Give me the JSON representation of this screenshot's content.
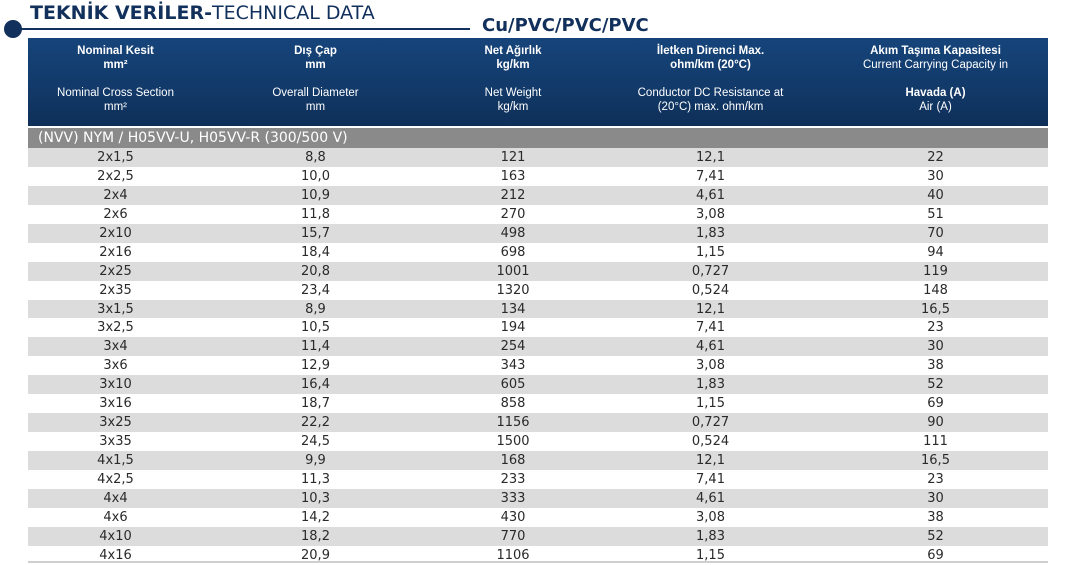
{
  "title": {
    "bold": "TEKNİK VERİLER-",
    "light": "TECHNICAL DATA"
  },
  "subtitle": "Cu/PVC/PVC/PVC",
  "header": {
    "columns": [
      {
        "tr": "Nominal Kesit",
        "tr_unit": "mm²",
        "en": "Nominal Cross Section",
        "en_unit": "mm²"
      },
      {
        "tr": "Dış Çap",
        "tr_unit": "mm",
        "en": "Overall Diameter",
        "en_unit": "mm"
      },
      {
        "tr": "Net Ağırlık",
        "tr_unit": "kg/km",
        "en": "Net Weight",
        "en_unit": "kg/km"
      },
      {
        "tr": "İletken Direnci Max.",
        "tr_unit": "ohm/km (20°C)",
        "en": "Conductor DC Resistance at",
        "en_unit": "(20°C) max. ohm/km"
      },
      {
        "tr": "Akım Taşıma Kapasitesi",
        "tr_unit": "Current Carrying Capacity in",
        "en": "Havada (A)",
        "en_unit": "Air (A)"
      }
    ]
  },
  "section_label": "(NVV) NYM / H05VV-U, H05VV-R (300/500 V)",
  "rows": [
    [
      "2x1,5",
      "8,8",
      "121",
      "12,1",
      "22"
    ],
    [
      "2x2,5",
      "10,0",
      "163",
      "7,41",
      "30"
    ],
    [
      "2x4",
      "10,9",
      "212",
      "4,61",
      "40"
    ],
    [
      "2x6",
      "11,8",
      "270",
      "3,08",
      "51"
    ],
    [
      "2x10",
      "15,7",
      "498",
      "1,83",
      "70"
    ],
    [
      "2x16",
      "18,4",
      "698",
      "1,15",
      "94"
    ],
    [
      "2x25",
      "20,8",
      "1001",
      "0,727",
      "119"
    ],
    [
      "2x35",
      "23,4",
      "1320",
      "0,524",
      "148"
    ],
    [
      "3x1,5",
      "8,9",
      "134",
      "12,1",
      "16,5"
    ],
    [
      "3x2,5",
      "10,5",
      "194",
      "7,41",
      "23"
    ],
    [
      "3x4",
      "11,4",
      "254",
      "4,61",
      "30"
    ],
    [
      "3x6",
      "12,9",
      "343",
      "3,08",
      "38"
    ],
    [
      "3x10",
      "16,4",
      "605",
      "1,83",
      "52"
    ],
    [
      "3x16",
      "18,7",
      "858",
      "1,15",
      "69"
    ],
    [
      "3x25",
      "22,2",
      "1156",
      "0,727",
      "90"
    ],
    [
      "3x35",
      "24,5",
      "1500",
      "0,524",
      "111"
    ],
    [
      "4x1,5",
      "9,9",
      "168",
      "12,1",
      "16,5"
    ],
    [
      "4x2,5",
      "11,3",
      "233",
      "7,41",
      "23"
    ],
    [
      "4x4",
      "10,3",
      "333",
      "4,61",
      "30"
    ],
    [
      "4x6",
      "14,2",
      "430",
      "3,08",
      "38"
    ],
    [
      "4x10",
      "18,2",
      "770",
      "1,83",
      "52"
    ],
    [
      "4x16",
      "20,9",
      "1106",
      "1,15",
      "69"
    ]
  ]
}
